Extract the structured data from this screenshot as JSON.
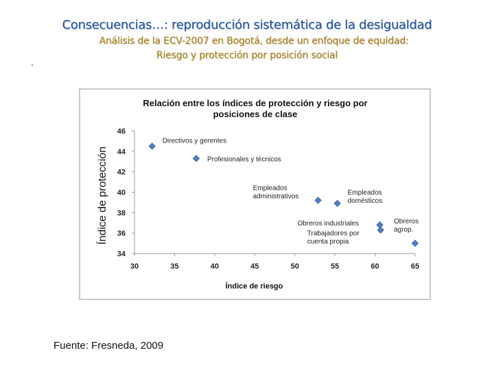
{
  "slide": {
    "title": "Consecuencias…: reproducción sistemática de la desigualdad",
    "subtitle_line1": "Análisis de la ECV-2007 en Bogotá, desde un enfoque de equidad:",
    "subtitle_line2": "Riesgo y protección por posición social",
    "source": "Fuente: Fresneda, 2009"
  },
  "colors": {
    "title": "#1f4e8c",
    "subtitle": "#a07a1e",
    "marker": "#4f81bd",
    "marker_edge": "#385d8a"
  },
  "chart_data": {
    "type": "scatter",
    "title_lines": [
      "Relación entre los índices de protección y riesgo por",
      "posiciones de clase"
    ],
    "xlabel": "Índice de riesgo",
    "ylabel": "Índice de protección",
    "xlim": [
      30,
      65
    ],
    "ylim": [
      34,
      46
    ],
    "xticks": [
      30,
      35,
      40,
      45,
      50,
      55,
      60,
      65
    ],
    "yticks": [
      34,
      36,
      38,
      40,
      42,
      44,
      46
    ],
    "grid": false,
    "points": [
      {
        "label_lines": [
          "Directivos y gerentes"
        ],
        "x": 32.2,
        "y": 44.5
      },
      {
        "label_lines": [
          "Profesionales y técnicos"
        ],
        "x": 37.7,
        "y": 43.3
      },
      {
        "label_lines": [
          "Empleados",
          "administrativos"
        ],
        "x": 52.9,
        "y": 39.2
      },
      {
        "label_lines": [
          "Empleados",
          "domésticos"
        ],
        "x": 55.3,
        "y": 38.9
      },
      {
        "label_lines": [
          "Obreros industriales"
        ],
        "x": 60.6,
        "y": 36.8
      },
      {
        "label_lines": [
          "Trabajadores por",
          "cuenta propia"
        ],
        "x": 60.7,
        "y": 36.3
      },
      {
        "label_lines": [
          "Obreros",
          "agrop."
        ],
        "x": 65.0,
        "y": 35.0
      }
    ]
  }
}
